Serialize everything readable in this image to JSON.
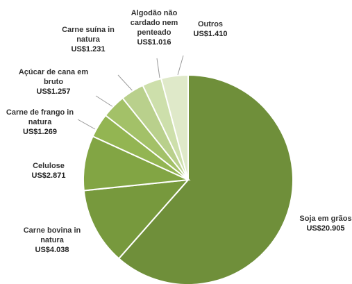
{
  "chart_data": {
    "type": "pie",
    "categories": [
      "Soja em grãos",
      "Carne bovina in natura",
      "Celulose",
      "Carne de frango in natura",
      "Açúcar de cana em bruto",
      "Carne suína in natura",
      "Algodão não cardado nem penteado",
      "Outros"
    ],
    "values": [
      20905,
      4038,
      2871,
      1269,
      1257,
      1231,
      1016,
      1410
    ],
    "value_labels": [
      "US$20.905",
      "US$4.038",
      "US$2.871",
      "US$1.269",
      "US$1.257",
      "US$1.231",
      "US$1.016",
      "US$1.410"
    ],
    "colors": [
      "#6f8f3a",
      "#77993d",
      "#82a544",
      "#93b552",
      "#a3c168",
      "#b9d08c",
      "#cddfab",
      "#dfe9c9"
    ]
  }
}
